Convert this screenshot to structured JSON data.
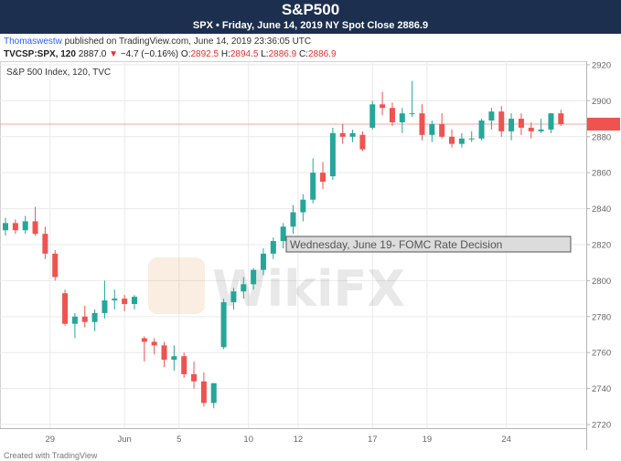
{
  "header": {
    "title": "S&P500",
    "subtitle": "SPX • Friday, June 14, 2019 NY Spot Close 2886.9"
  },
  "publish_line": {
    "user": "Thomaswestw",
    "text": " published on TradingView.com, June 14, 2019 23:36:05 UTC"
  },
  "ohlc_line": {
    "symbol": "TVCSP:SPX, 120",
    "last": "2887.0",
    "change_arrow": "▼",
    "change": "−4.7 (−0.16%)",
    "o_label": "O:",
    "o_value": "2892.5",
    "h_label": "H:",
    "h_value": "2894.5",
    "l_label": "L:",
    "l_value": "2886.9",
    "c_label": "C:",
    "c_value": "2886.9"
  },
  "footer": {
    "text": "Created with TradingView"
  },
  "chart_data": {
    "type": "candlestick",
    "series_label": "S&P 500 Index, 120, TVC",
    "annotation": "Wednesday, June 19- FOMC Rate Decision",
    "watermark": "WikiFX",
    "reference_line": 2887,
    "ylim": [
      2718,
      2922
    ],
    "y_ticks": [
      2720,
      2740,
      2760,
      2780,
      2800,
      2820,
      2840,
      2860,
      2880,
      2900,
      2920
    ],
    "x_ticks": [
      "29",
      "Jun",
      "5",
      "10",
      "12",
      "17",
      "19",
      "24"
    ],
    "x_tick_index": [
      4.5,
      12,
      17.5,
      24.5,
      29.5,
      37,
      42.5,
      50.5
    ],
    "x_range": [
      0,
      58
    ],
    "grid": true,
    "colors": {
      "up": "#26a69a",
      "down": "#ef5350",
      "grid": "#eaeaea",
      "reference": "#f4a7a7",
      "axis_text": "#666666"
    },
    "candles": [
      {
        "o": 2828,
        "h": 2835,
        "l": 2825,
        "c": 2832
      },
      {
        "o": 2832,
        "h": 2834,
        "l": 2826,
        "c": 2828
      },
      {
        "o": 2828,
        "h": 2836,
        "l": 2826,
        "c": 2833
      },
      {
        "o": 2833,
        "h": 2841,
        "l": 2825,
        "c": 2826
      },
      {
        "o": 2826,
        "h": 2830,
        "l": 2812,
        "c": 2815
      },
      {
        "o": 2815,
        "h": 2817,
        "l": 2800,
        "c": 2802
      },
      {
        "o": 2793,
        "h": 2795,
        "l": 2775,
        "c": 2776
      },
      {
        "o": 2776,
        "h": 2782,
        "l": 2768,
        "c": 2780
      },
      {
        "o": 2780,
        "h": 2786,
        "l": 2774,
        "c": 2777
      },
      {
        "o": 2777,
        "h": 2784,
        "l": 2772,
        "c": 2782
      },
      {
        "o": 2782,
        "h": 2800,
        "l": 2779,
        "c": 2789
      },
      {
        "o": 2789,
        "h": 2795,
        "l": 2784,
        "c": 2790
      },
      {
        "o": 2790,
        "h": 2792,
        "l": 2783,
        "c": 2787
      },
      {
        "o": 2787,
        "h": 2792,
        "l": 2784,
        "c": 2791
      },
      {
        "o": 2768,
        "h": 2769,
        "l": 2755,
        "c": 2766
      },
      {
        "o": 2766,
        "h": 2768,
        "l": 2759,
        "c": 2764
      },
      {
        "o": 2764,
        "h": 2766,
        "l": 2752,
        "c": 2756
      },
      {
        "o": 2756,
        "h": 2764,
        "l": 2750,
        "c": 2758
      },
      {
        "o": 2758,
        "h": 2760,
        "l": 2746,
        "c": 2748
      },
      {
        "o": 2748,
        "h": 2755,
        "l": 2740,
        "c": 2744
      },
      {
        "o": 2744,
        "h": 2749,
        "l": 2730,
        "c": 2732
      },
      {
        "o": 2732,
        "h": 2743,
        "l": 2729,
        "c": 2743
      },
      {
        "o": 2763,
        "h": 2790,
        "l": 2762,
        "c": 2788
      },
      {
        "o": 2788,
        "h": 2796,
        "l": 2784,
        "c": 2794
      },
      {
        "o": 2794,
        "h": 2802,
        "l": 2790,
        "c": 2798
      },
      {
        "o": 2798,
        "h": 2807,
        "l": 2795,
        "c": 2806
      },
      {
        "o": 2806,
        "h": 2818,
        "l": 2803,
        "c": 2815
      },
      {
        "o": 2815,
        "h": 2824,
        "l": 2812,
        "c": 2822
      },
      {
        "o": 2822,
        "h": 2832,
        "l": 2818,
        "c": 2830
      },
      {
        "o": 2830,
        "h": 2842,
        "l": 2826,
        "c": 2838
      },
      {
        "o": 2838,
        "h": 2848,
        "l": 2833,
        "c": 2845
      },
      {
        "o": 2845,
        "h": 2868,
        "l": 2843,
        "c": 2860
      },
      {
        "o": 2860,
        "h": 2866,
        "l": 2851,
        "c": 2855
      },
      {
        "o": 2858,
        "h": 2885,
        "l": 2856,
        "c": 2882
      },
      {
        "o": 2882,
        "h": 2887,
        "l": 2876,
        "c": 2880
      },
      {
        "o": 2880,
        "h": 2884,
        "l": 2877,
        "c": 2882
      },
      {
        "o": 2881,
        "h": 2883,
        "l": 2872,
        "c": 2873
      },
      {
        "o": 2885,
        "h": 2900,
        "l": 2884,
        "c": 2898
      },
      {
        "o": 2898,
        "h": 2905,
        "l": 2892,
        "c": 2896
      },
      {
        "o": 2896,
        "h": 2899,
        "l": 2886,
        "c": 2888
      },
      {
        "o": 2888,
        "h": 2896,
        "l": 2882,
        "c": 2893
      },
      {
        "o": 2893,
        "h": 2911,
        "l": 2891,
        "c": 2893
      },
      {
        "o": 2893,
        "h": 2898,
        "l": 2878,
        "c": 2881
      },
      {
        "o": 2881,
        "h": 2889,
        "l": 2877,
        "c": 2887
      },
      {
        "o": 2887,
        "h": 2893,
        "l": 2879,
        "c": 2880
      },
      {
        "o": 2880,
        "h": 2884,
        "l": 2874,
        "c": 2876
      },
      {
        "o": 2876,
        "h": 2882,
        "l": 2874,
        "c": 2879
      },
      {
        "o": 2879,
        "h": 2883,
        "l": 2877,
        "c": 2879
      },
      {
        "o": 2879,
        "h": 2890,
        "l": 2878,
        "c": 2889
      },
      {
        "o": 2889,
        "h": 2896,
        "l": 2884,
        "c": 2894
      },
      {
        "o": 2894,
        "h": 2897,
        "l": 2880,
        "c": 2883
      },
      {
        "o": 2883,
        "h": 2893,
        "l": 2878,
        "c": 2890
      },
      {
        "o": 2890,
        "h": 2893,
        "l": 2881,
        "c": 2885
      },
      {
        "o": 2885,
        "h": 2888,
        "l": 2879,
        "c": 2883
      },
      {
        "o": 2883,
        "h": 2890,
        "l": 2882,
        "c": 2884
      },
      {
        "o": 2884,
        "h": 2893,
        "l": 2882,
        "c": 2893
      },
      {
        "o": 2893,
        "h": 2895,
        "l": 2886,
        "c": 2887
      }
    ]
  }
}
